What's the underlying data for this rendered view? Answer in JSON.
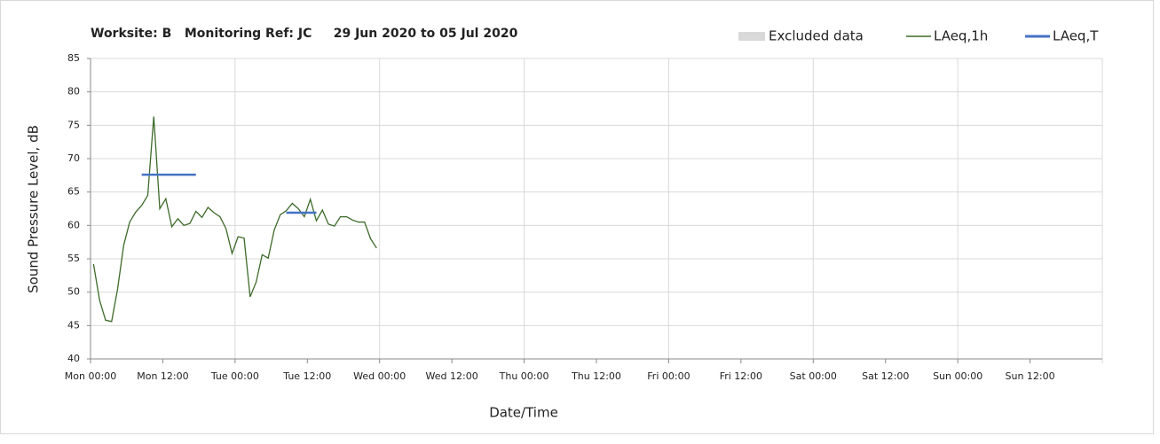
{
  "chart_data": {
    "type": "line",
    "title": "Worksite: B   Monitoring Ref: JC     29 Jun 2020 to 05 Jul 2020",
    "ylabel": "Sound Pressure Level, dB",
    "xlabel": "Date/Time",
    "xlim": [
      0,
      168
    ],
    "xticks": [
      {
        "value": 0,
        "label": "Mon 00:00"
      },
      {
        "value": 12,
        "label": "Mon 12:00"
      },
      {
        "value": 24,
        "label": "Tue 00:00"
      },
      {
        "value": 36,
        "label": "Tue 12:00"
      },
      {
        "value": 48,
        "label": "Wed 00:00"
      },
      {
        "value": 60,
        "label": "Wed 12:00"
      },
      {
        "value": 72,
        "label": "Thu 00:00"
      },
      {
        "value": 84,
        "label": "Thu 12:00"
      },
      {
        "value": 96,
        "label": "Fri 00:00"
      },
      {
        "value": 108,
        "label": "Fri 12:00"
      },
      {
        "value": 120,
        "label": "Sat 00:00"
      },
      {
        "value": 132,
        "label": "Sat 12:00"
      },
      {
        "value": 144,
        "label": "Sun 00:00"
      },
      {
        "value": 156,
        "label": "Sun 12:00"
      }
    ],
    "ylim": [
      40,
      85
    ],
    "yticks": [
      40,
      45,
      50,
      55,
      60,
      65,
      70,
      75,
      80,
      85
    ],
    "grid": true,
    "legend": "top-right",
    "series": [
      {
        "name": "Excluded data",
        "color": "#d9d9d9",
        "x": [],
        "values": []
      },
      {
        "name": "LAeq,1h",
        "color": "#3d6b2a",
        "x": [
          0.5,
          1.5,
          2.5,
          3.5,
          4.5,
          5.5,
          6.5,
          7.5,
          8.5,
          9.5,
          10.5,
          11.5,
          12.5,
          13.5,
          14.5,
          15.5,
          16.5,
          17.5,
          18.5,
          19.5,
          20.5,
          21.5,
          22.5,
          23.5,
          24.5,
          25.5,
          26.5,
          27.5,
          28.5,
          29.5,
          30.5,
          31.5,
          32.5,
          33.5,
          34.5,
          35.5,
          36.5,
          37.5,
          38.5,
          39.5,
          40.5,
          41.5,
          42.5,
          43.5,
          44.5,
          45.5,
          46.5,
          47.5
        ],
        "values": [
          54.2,
          48.8,
          45.8,
          45.6,
          50.5,
          57,
          60.5,
          62,
          63,
          64.5,
          76.3,
          62.5,
          64,
          59.8,
          61,
          60,
          60.3,
          62.1,
          61.2,
          62.7,
          61.9,
          61.3,
          59.5,
          55.8,
          58.3,
          58.1,
          49.3,
          51.5,
          55.6,
          55.1,
          59.3,
          61.6,
          62.2,
          63.3,
          62.5,
          61.3,
          63.9,
          60.7,
          62.3,
          60.2,
          59.9,
          61.3,
          61.3,
          60.8,
          60.5,
          60.5,
          58,
          56.6
        ]
      },
      {
        "name": "LAeq,T",
        "color": "#4472c4",
        "x": [
          8.5,
          17.5,
          25,
          32.5,
          37.5
        ],
        "values": [
          67.6,
          67.6,
          null,
          61.9,
          61.9
        ]
      }
    ]
  }
}
